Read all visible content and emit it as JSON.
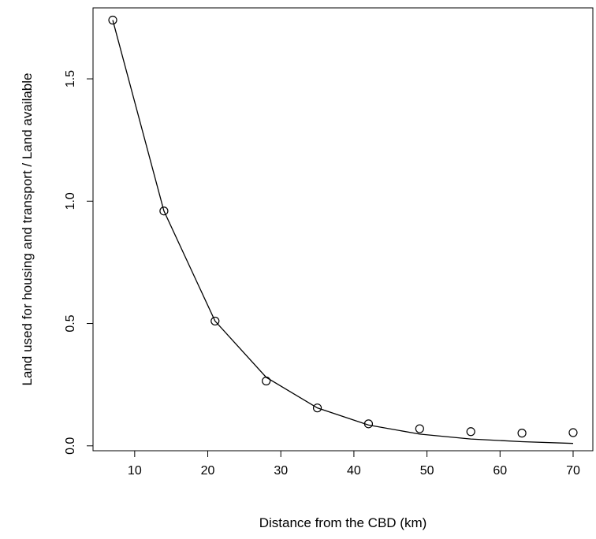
{
  "chart_data": {
    "type": "scatter",
    "xlabel": "Distance from the CBD (km)",
    "ylabel": "Land used for housing and transport / Land available",
    "xlim": [
      4.3,
      72.7
    ],
    "ylim": [
      -0.02,
      1.79
    ],
    "x_ticks": [
      10,
      20,
      30,
      40,
      50,
      60,
      70
    ],
    "y_ticks": [
      0.0,
      0.5,
      1.0,
      1.5
    ],
    "x_tick_labels": [
      "10",
      "20",
      "30",
      "40",
      "50",
      "60",
      "70"
    ],
    "y_tick_labels": [
      "0.0",
      "0.5",
      "1.0",
      "1.5"
    ],
    "grid": false,
    "series": [
      {
        "kind": "points",
        "marker": "open-circle",
        "x": [
          7,
          14,
          21,
          28,
          35,
          42,
          49,
          56,
          63,
          70
        ],
        "y": [
          1.74,
          0.96,
          0.51,
          0.265,
          0.155,
          0.09,
          0.07,
          0.058,
          0.052,
          0.054
        ]
      },
      {
        "kind": "line",
        "x": [
          7,
          14,
          21,
          28,
          35,
          42,
          49,
          56,
          63,
          70
        ],
        "y": [
          1.74,
          0.96,
          0.51,
          0.28,
          0.155,
          0.085,
          0.048,
          0.028,
          0.017,
          0.01
        ]
      }
    ]
  }
}
